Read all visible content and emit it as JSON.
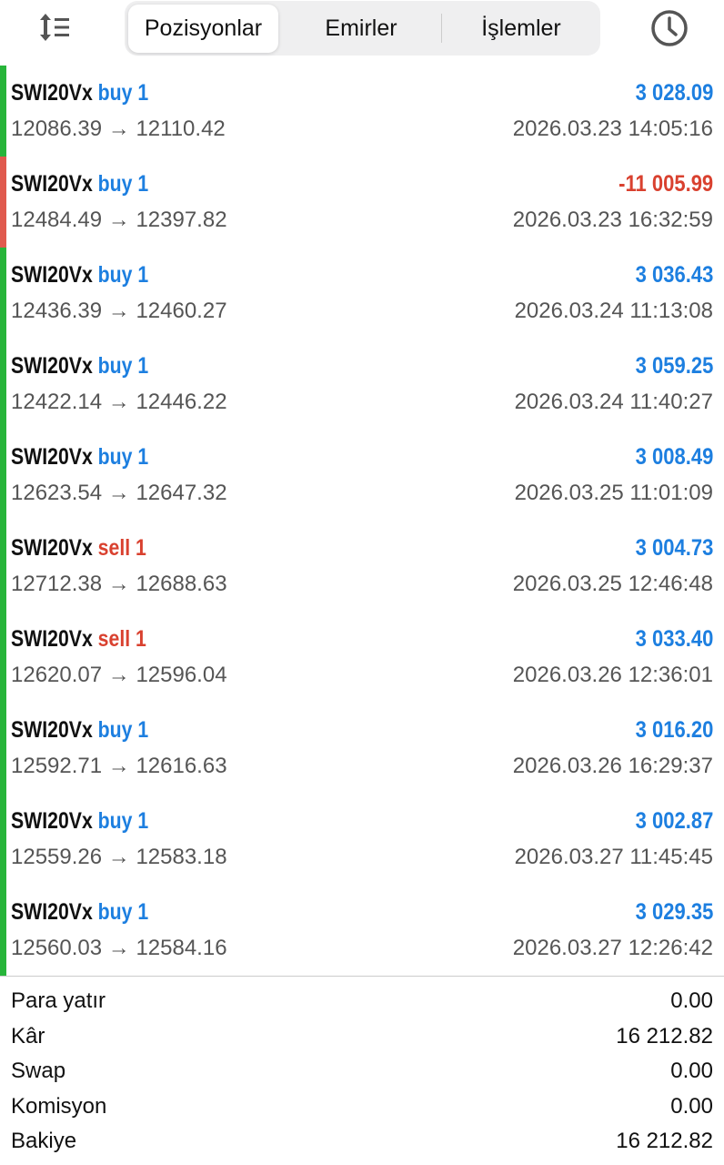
{
  "header": {
    "tabs": [
      {
        "label": "Pozisyonlar",
        "active": true
      },
      {
        "label": "Emirler",
        "active": false
      },
      {
        "label": "İşlemler",
        "active": false
      }
    ],
    "icons": {
      "left": "sort-icon",
      "right": "clock-icon"
    }
  },
  "colors": {
    "buy": "#1d7fe0",
    "sell": "#d9412f",
    "profit_positive": "#1d7fe0",
    "profit_negative": "#d9412f",
    "bar_positive": "#27b53a",
    "bar_negative": "#e05a4e"
  },
  "trades": [
    {
      "symbol": "SWI20Vx",
      "side": "buy 1",
      "profit": "3 028.09",
      "prices": "12086.39 → 12110.42",
      "time": "2026.03.23 14:05:16"
    },
    {
      "symbol": "SWI20Vx",
      "side": "buy 1",
      "profit": "-11 005.99",
      "prices": "12484.49 → 12397.82",
      "time": "2026.03.23 16:32:59"
    },
    {
      "symbol": "SWI20Vx",
      "side": "buy 1",
      "profit": "3 036.43",
      "prices": "12436.39 → 12460.27",
      "time": "2026.03.24 11:13:08"
    },
    {
      "symbol": "SWI20Vx",
      "side": "buy 1",
      "profit": "3 059.25",
      "prices": "12422.14 → 12446.22",
      "time": "2026.03.24 11:40:27"
    },
    {
      "symbol": "SWI20Vx",
      "side": "buy 1",
      "profit": "3 008.49",
      "prices": "12623.54 → 12647.32",
      "time": "2026.03.25 11:01:09"
    },
    {
      "symbol": "SWI20Vx",
      "side": "sell 1",
      "profit": "3 004.73",
      "prices": "12712.38 → 12688.63",
      "time": "2026.03.25 12:46:48"
    },
    {
      "symbol": "SWI20Vx",
      "side": "sell 1",
      "profit": "3 033.40",
      "prices": "12620.07 → 12596.04",
      "time": "2026.03.26 12:36:01"
    },
    {
      "symbol": "SWI20Vx",
      "side": "buy 1",
      "profit": "3 016.20",
      "prices": "12592.71 → 12616.63",
      "time": "2026.03.26 16:29:37"
    },
    {
      "symbol": "SWI20Vx",
      "side": "buy 1",
      "profit": "3 002.87",
      "prices": "12559.26 → 12583.18",
      "time": "2026.03.27 11:45:45"
    },
    {
      "symbol": "SWI20Vx",
      "side": "buy 1",
      "profit": "3 029.35",
      "prices": "12560.03 → 12584.16",
      "time": "2026.03.27 12:26:42"
    }
  ],
  "summary": [
    {
      "label": "Para yatır",
      "value": "0.00"
    },
    {
      "label": "Kâr",
      "value": "16 212.82"
    },
    {
      "label": "Swap",
      "value": "0.00"
    },
    {
      "label": "Komisyon",
      "value": "0.00"
    },
    {
      "label": "Bakiye",
      "value": "16 212.82"
    }
  ]
}
